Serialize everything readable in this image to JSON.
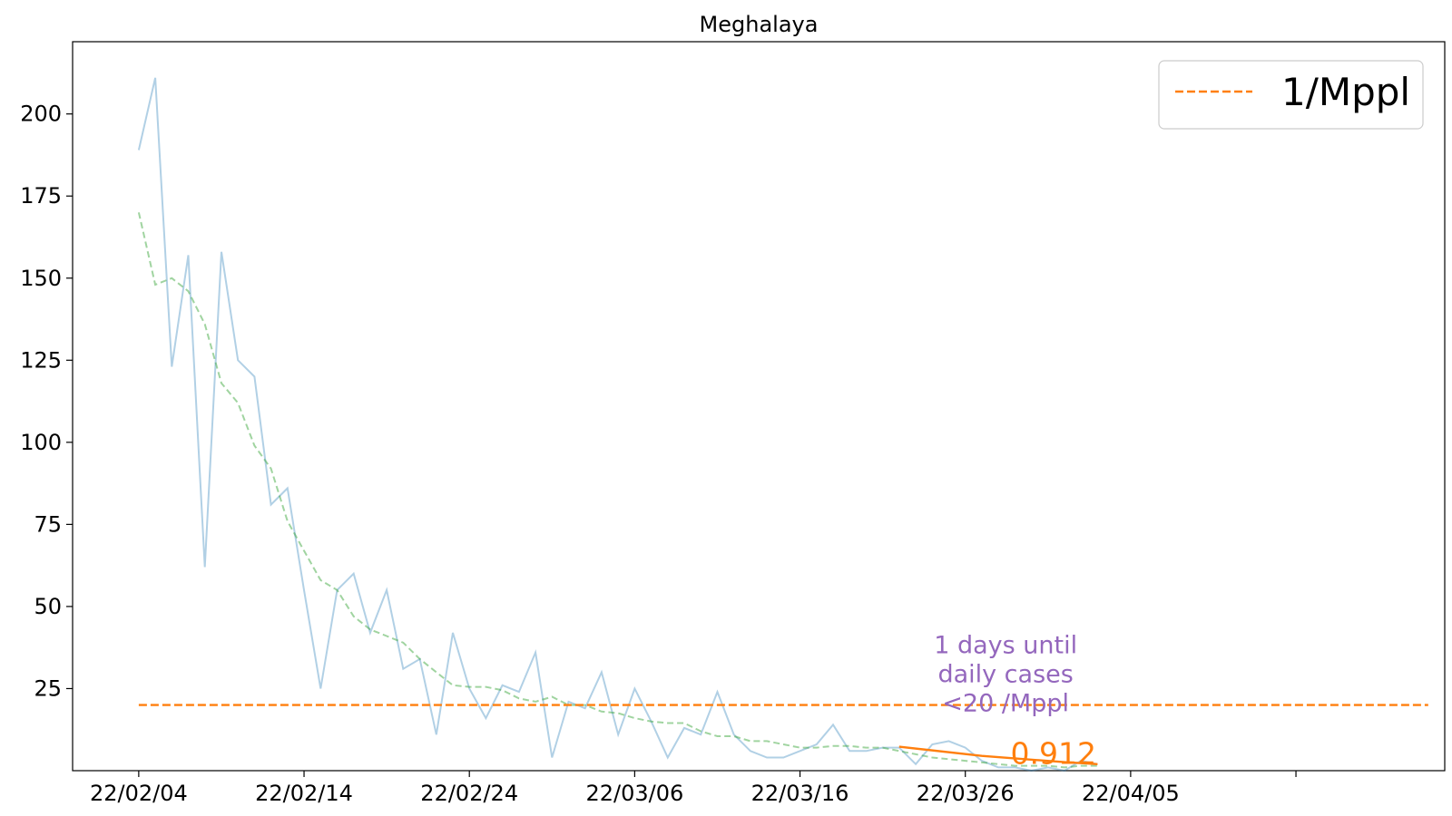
{
  "chart_data": {
    "type": "line",
    "title": "Meghalaya",
    "xlabel": "",
    "ylabel": "",
    "x_ticks": [
      "22/02/04",
      "22/02/14",
      "22/02/24",
      "22/03/06",
      "22/03/16",
      "22/03/26",
      "22/04/05",
      ""
    ],
    "y_ticks": [
      25,
      50,
      75,
      100,
      125,
      150,
      175,
      200
    ],
    "ylim": [
      0,
      222
    ],
    "xlim": [
      "2022-01-31",
      "2022-04-24"
    ],
    "grid": false,
    "legend": {
      "position": "top-right",
      "entries": [
        {
          "label": "1/Mppl",
          "style": "dashed",
          "color": "#ff7f0e"
        }
      ]
    },
    "colors": {
      "daily": "#1f77b4",
      "smoothed": "#2ca02c",
      "threshold": "#ff7f0e",
      "fit": "#ff7f0e",
      "annotation": "#9467bd"
    },
    "series": [
      {
        "key": "daily",
        "style": "solid",
        "opacity": 0.35,
        "x": [
          "2022-02-04",
          "2022-02-05",
          "2022-02-06",
          "2022-02-07",
          "2022-02-08",
          "2022-02-09",
          "2022-02-10",
          "2022-02-11",
          "2022-02-12",
          "2022-02-13",
          "2022-02-14",
          "2022-02-15",
          "2022-02-16",
          "2022-02-17",
          "2022-02-18",
          "2022-02-19",
          "2022-02-20",
          "2022-02-21",
          "2022-02-22",
          "2022-02-23",
          "2022-02-24",
          "2022-02-25",
          "2022-02-26",
          "2022-02-27",
          "2022-02-28",
          "2022-03-01",
          "2022-03-02",
          "2022-03-03",
          "2022-03-04",
          "2022-03-05",
          "2022-03-06",
          "2022-03-07",
          "2022-03-08",
          "2022-03-09",
          "2022-03-10",
          "2022-03-11",
          "2022-03-12",
          "2022-03-13",
          "2022-03-14",
          "2022-03-15",
          "2022-03-16",
          "2022-03-17",
          "2022-03-18",
          "2022-03-19",
          "2022-03-20",
          "2022-03-21",
          "2022-03-22",
          "2022-03-23",
          "2022-03-24",
          "2022-03-25",
          "2022-03-26",
          "2022-03-27",
          "2022-03-28",
          "2022-03-29",
          "2022-03-30",
          "2022-03-31",
          "2022-04-01",
          "2022-04-02",
          "2022-04-03"
        ],
        "values": [
          189,
          211,
          123,
          157,
          62,
          158,
          125,
          120,
          81,
          86,
          55,
          25,
          55,
          60,
          42,
          55,
          31,
          34,
          11,
          42,
          25,
          16,
          26,
          24,
          36,
          4,
          21,
          19,
          30,
          11,
          25,
          15,
          4,
          13,
          11,
          24,
          11,
          6,
          4,
          4,
          6,
          8,
          14,
          6,
          6,
          7,
          7,
          2,
          8,
          9,
          7,
          3,
          1,
          1,
          0,
          1,
          0,
          3,
          2
        ]
      },
      {
        "key": "smoothed",
        "style": "dashed",
        "opacity": 0.45,
        "x": [
          "2022-02-04",
          "2022-02-05",
          "2022-02-06",
          "2022-02-07",
          "2022-02-08",
          "2022-02-09",
          "2022-02-10",
          "2022-02-11",
          "2022-02-12",
          "2022-02-13",
          "2022-02-14",
          "2022-02-15",
          "2022-02-16",
          "2022-02-17",
          "2022-02-18",
          "2022-02-19",
          "2022-02-20",
          "2022-02-21",
          "2022-02-22",
          "2022-02-23",
          "2022-02-24",
          "2022-02-25",
          "2022-02-26",
          "2022-02-27",
          "2022-02-28",
          "2022-03-01",
          "2022-03-02",
          "2022-03-03",
          "2022-03-04",
          "2022-03-05",
          "2022-03-06",
          "2022-03-07",
          "2022-03-08",
          "2022-03-09",
          "2022-03-10",
          "2022-03-11",
          "2022-03-12",
          "2022-03-13",
          "2022-03-14",
          "2022-03-15",
          "2022-03-16",
          "2022-03-17",
          "2022-03-18",
          "2022-03-19",
          "2022-03-20",
          "2022-03-21",
          "2022-03-22",
          "2022-03-23",
          "2022-03-24",
          "2022-03-25",
          "2022-03-26",
          "2022-03-27",
          "2022-03-28",
          "2022-03-29",
          "2022-03-30",
          "2022-03-31",
          "2022-04-01",
          "2022-04-02",
          "2022-04-03"
        ],
        "values": [
          170,
          148,
          150,
          146,
          136,
          118,
          112,
          99,
          92,
          76,
          67,
          58,
          55,
          47,
          43,
          41,
          39,
          34,
          30,
          26,
          25.5,
          25.5,
          24.5,
          22,
          21,
          22.5,
          20,
          20,
          18,
          17.5,
          16,
          15,
          14.5,
          14.5,
          12,
          10.5,
          10.5,
          9,
          9,
          8,
          7,
          7,
          7.5,
          7.5,
          7,
          7,
          6,
          5,
          4,
          3.5,
          3,
          2.5,
          2,
          1.5,
          1.5,
          1.5,
          1,
          1.5,
          1.5
        ]
      },
      {
        "key": "threshold",
        "label": "1/Mppl",
        "style": "dashed",
        "x": [
          "2022-02-04",
          "2022-04-23"
        ],
        "values": [
          20,
          20
        ]
      },
      {
        "key": "fit",
        "style": "solid",
        "x": [
          "2022-03-22",
          "2022-03-27",
          "2022-04-01",
          "2022-04-03"
        ],
        "values": [
          7.3,
          4.5,
          2.6,
          2.0
        ]
      }
    ],
    "annotations": [
      {
        "lines": [
          "1 days until",
          "daily cases",
          "<20 /Mppl"
        ],
        "color": "#9467bd"
      },
      {
        "text": "0.912",
        "color": "#ff7f0e"
      }
    ]
  }
}
